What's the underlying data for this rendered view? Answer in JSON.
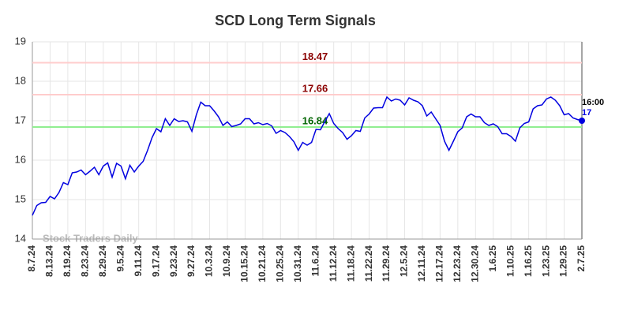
{
  "chart_data": {
    "type": "line",
    "title": "SCD Long Term Signals",
    "watermark": "Stock Traders Daily",
    "categories": [
      "8.7.24",
      null,
      null,
      null,
      "8.13.24",
      null,
      null,
      null,
      "8.19.24",
      null,
      null,
      null,
      "8.23.24",
      null,
      null,
      null,
      "8.29.24",
      null,
      null,
      null,
      "9.5.24",
      null,
      null,
      null,
      "9.11.24",
      null,
      null,
      null,
      "9.17.24",
      null,
      null,
      null,
      "9.23.24",
      null,
      null,
      null,
      "9.27.24",
      null,
      null,
      null,
      "10.3.24",
      null,
      null,
      null,
      "10.9.24",
      null,
      null,
      null,
      "10.15.24",
      null,
      null,
      null,
      "10.21.24",
      null,
      null,
      null,
      "10.25.24",
      null,
      null,
      null,
      "10.31.24",
      null,
      null,
      null,
      "11.6.24",
      null,
      null,
      null,
      "11.12.24",
      null,
      null,
      null,
      "11.18.24",
      null,
      null,
      null,
      "11.22.24",
      null,
      null,
      null,
      "11.29.24",
      null,
      null,
      null,
      "12.5.24",
      null,
      null,
      null,
      "12.11.24",
      null,
      null,
      null,
      "12.17.24",
      null,
      null,
      null,
      "12.23.24",
      null,
      null,
      null,
      "12.30.24",
      null,
      null,
      null,
      "1.6.25",
      null,
      null,
      null,
      "1.10.25",
      null,
      null,
      null,
      "1.16.25",
      null,
      null,
      null,
      "1.23.25",
      null,
      null,
      null,
      "1.29.25",
      null,
      null,
      null,
      "2.7.25"
    ],
    "series": [
      {
        "name": "SCD",
        "color": "#0000e0",
        "values": [
          14.6,
          14.85,
          14.92,
          14.93,
          15.08,
          15.02,
          15.18,
          15.43,
          15.38,
          15.68,
          15.7,
          15.75,
          15.63,
          15.72,
          15.82,
          15.63,
          15.85,
          15.93,
          15.57,
          15.92,
          15.85,
          15.53,
          15.87,
          15.7,
          15.85,
          15.97,
          16.25,
          16.57,
          16.8,
          16.72,
          17.05,
          16.88,
          17.05,
          16.98,
          17.0,
          16.97,
          16.73,
          17.15,
          17.47,
          17.38,
          17.38,
          17.25,
          17.1,
          16.88,
          16.97,
          16.85,
          16.88,
          16.92,
          17.05,
          17.05,
          16.92,
          16.95,
          16.9,
          16.93,
          16.87,
          16.68,
          16.75,
          16.7,
          16.6,
          16.47,
          16.25,
          16.45,
          16.38,
          16.45,
          16.78,
          16.77,
          16.98,
          17.18,
          16.93,
          16.8,
          16.7,
          16.53,
          16.62,
          16.75,
          16.73,
          17.07,
          17.17,
          17.32,
          17.33,
          17.33,
          17.6,
          17.5,
          17.55,
          17.52,
          17.4,
          17.58,
          17.52,
          17.48,
          17.38,
          17.12,
          17.22,
          17.05,
          16.88,
          16.48,
          16.25,
          16.48,
          16.72,
          16.82,
          17.1,
          17.17,
          17.1,
          17.1,
          16.95,
          16.88,
          16.92,
          16.85,
          16.67,
          16.67,
          16.6,
          16.48,
          16.82,
          16.93,
          16.97,
          17.3,
          17.38,
          17.4,
          17.55,
          17.6,
          17.52,
          17.38,
          17.15,
          17.18,
          17.07,
          17.03,
          17.0
        ]
      }
    ],
    "last_time": "16:00",
    "last_value": 17,
    "levels": [
      {
        "value": 18.47,
        "color": "#ffcccc",
        "label_color": "#8b0000"
      },
      {
        "value": 17.66,
        "color": "#ffcccc",
        "label_color": "#8b0000"
      },
      {
        "value": 16.84,
        "color": "#90ee90",
        "label_color": "#006400"
      }
    ],
    "ylim": [
      14,
      19
    ],
    "yticks": [
      14,
      15,
      16,
      17,
      18,
      19
    ],
    "grid": true
  }
}
